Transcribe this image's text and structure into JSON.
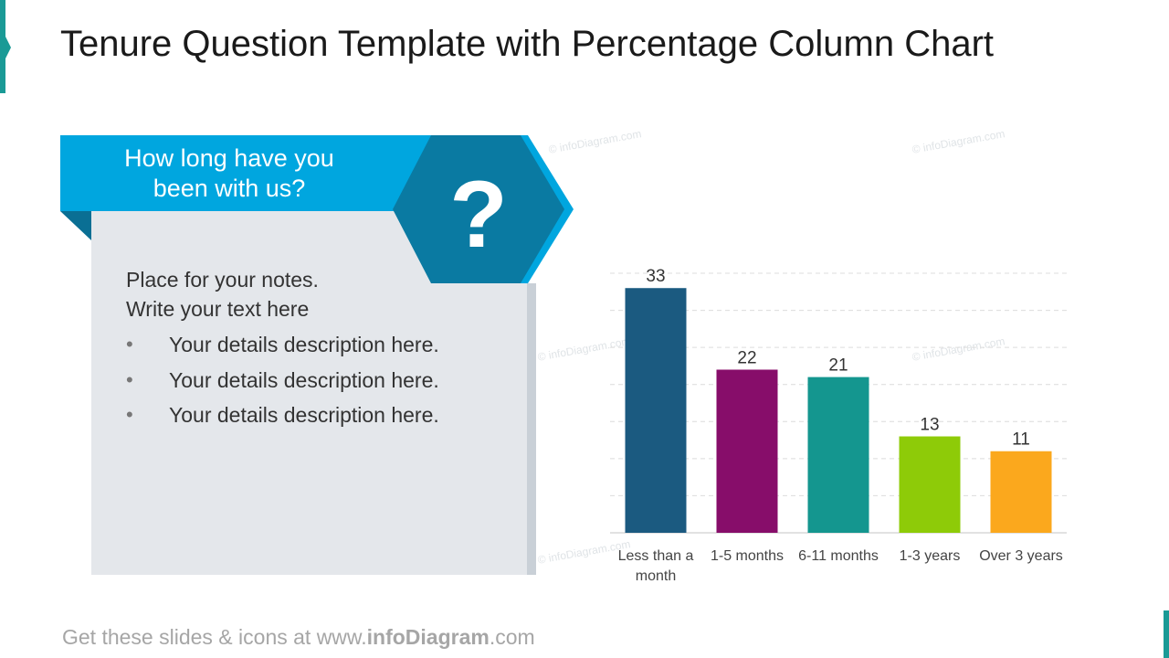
{
  "title": "Tenure Question Template with Percentage Column Chart",
  "question": {
    "text": "How long have you been with us?",
    "icon_glyph": "?",
    "icon": "question-mark-hexagon-icon"
  },
  "notes": {
    "line1": "Place for your notes.",
    "line2": "Write your text here",
    "bullets": [
      "Your details description here.",
      "Your details description here.",
      "Your details description here."
    ]
  },
  "chart_data": {
    "type": "bar",
    "categories": [
      "Less than a month",
      "1-5 months",
      "6-11 months",
      "1-3 years",
      "Over 3 years"
    ],
    "values": [
      33,
      22,
      21,
      13,
      11
    ],
    "colors": [
      "#1b5a80",
      "#870d6a",
      "#14968f",
      "#8ecb08",
      "#fba81d"
    ],
    "ylim": [
      0,
      35
    ],
    "grid": true,
    "data_labels": true
  },
  "watermark": "© infoDiagram.com",
  "footer": {
    "prefix": "Get these slides & icons at www.",
    "brand": "infoDiagram",
    "suffix": ".com"
  },
  "colors": {
    "banner": "#00a6df",
    "hexagon": "#0a7aa2",
    "card": "#e4e7eb",
    "accent": "#1a9a96"
  }
}
